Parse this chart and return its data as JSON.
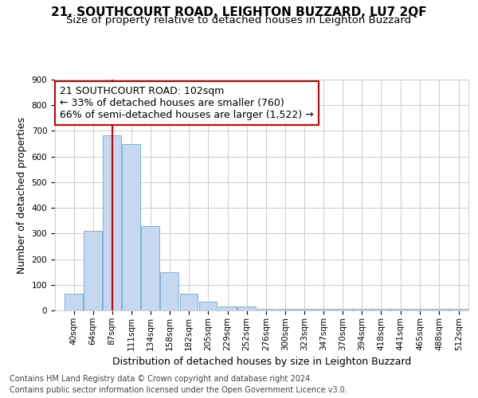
{
  "title": "21, SOUTHCOURT ROAD, LEIGHTON BUZZARD, LU7 2QF",
  "subtitle": "Size of property relative to detached houses in Leighton Buzzard",
  "xlabel": "Distribution of detached houses by size in Leighton Buzzard",
  "ylabel": "Number of detached properties",
  "footnote1": "Contains HM Land Registry data © Crown copyright and database right 2024.",
  "footnote2": "Contains public sector information licensed under the Open Government Licence v3.0.",
  "annotation_line1": "21 SOUTHCOURT ROAD: 102sqm",
  "annotation_line2": "← 33% of detached houses are smaller (760)",
  "annotation_line3": "66% of semi-detached houses are larger (1,522) →",
  "bar_centers": [
    52,
    75.5,
    99,
    122.5,
    146,
    169.5,
    193,
    216.5,
    240.5,
    264,
    288,
    311.5,
    335,
    358.5,
    382,
    405.5,
    429,
    452.5,
    476.5,
    500,
    524
  ],
  "bar_widths_plot": [
    23,
    23,
    23,
    23,
    23,
    23,
    23,
    23,
    23,
    23,
    23,
    23,
    23,
    23,
    23,
    23,
    23,
    23,
    23,
    23,
    23
  ],
  "bar_heights": [
    65,
    310,
    683,
    650,
    330,
    150,
    65,
    33,
    15,
    15,
    7,
    7,
    7,
    7,
    7,
    7,
    7,
    7,
    7,
    7,
    7
  ],
  "xtick_labels": [
    "40sqm",
    "64sqm",
    "87sqm",
    "111sqm",
    "134sqm",
    "158sqm",
    "182sqm",
    "205sqm",
    "229sqm",
    "252sqm",
    "276sqm",
    "300sqm",
    "323sqm",
    "347sqm",
    "370sqm",
    "394sqm",
    "418sqm",
    "441sqm",
    "465sqm",
    "488sqm",
    "512sqm"
  ],
  "bar_color": "#c5d8f0",
  "bar_edgecolor": "#6fa8d0",
  "vline_x": 99,
  "vline_color": "#cc0000",
  "annotation_box_edgecolor": "#cc0000",
  "annotation_box_facecolor": "#ffffff",
  "ylim": [
    0,
    900
  ],
  "yticks": [
    0,
    100,
    200,
    300,
    400,
    500,
    600,
    700,
    800,
    900
  ],
  "xlim": [
    29,
    536
  ],
  "bg_color": "#ffffff",
  "grid_color": "#cccccc",
  "title_fontsize": 11,
  "subtitle_fontsize": 9.5,
  "axis_label_fontsize": 9,
  "tick_fontsize": 7.5,
  "annotation_fontsize": 9,
  "footnote_fontsize": 7
}
